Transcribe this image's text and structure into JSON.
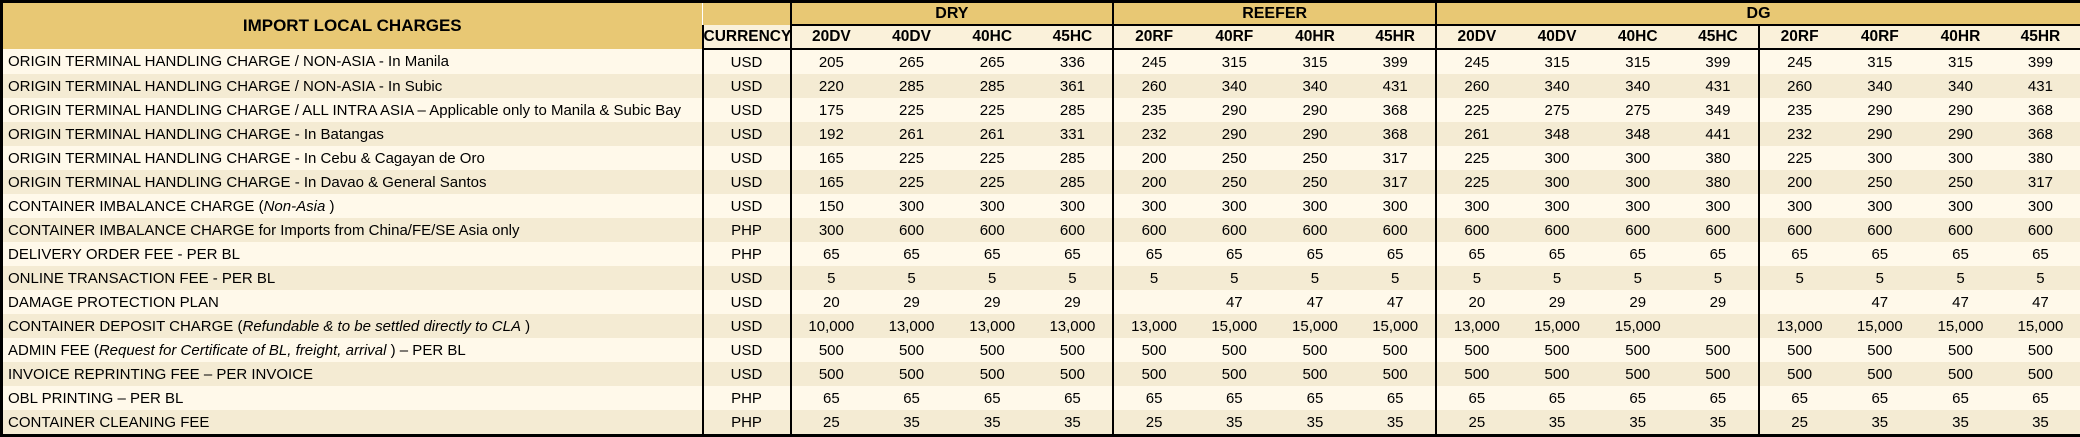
{
  "colors": {
    "gold": "#E8C874",
    "subhead": "#FAF1DA",
    "rowLight": "#FFF9EA",
    "rowDark": "#F4EBD3",
    "border": "#000000"
  },
  "table": {
    "title": "IMPORT LOCAL CHARGES",
    "currency_header": "CURRENCY",
    "groups": [
      {
        "label": "DRY",
        "cols": [
          "20DV",
          "40DV",
          "40HC",
          "45HC"
        ]
      },
      {
        "label": "REEFER",
        "cols": [
          "20RF",
          "40RF",
          "40HR",
          "45HR"
        ]
      },
      {
        "label": "DG",
        "cols": [
          "20DV",
          "40DV",
          "40HC",
          "45HC",
          "20RF",
          "40RF",
          "40HR",
          "45HR"
        ]
      }
    ],
    "rows": [
      {
        "label": {
          "pre": "ORIGIN TERMINAL HANDLING CHARGE / NON-ASIA - In Manila",
          "em": "",
          "post": ""
        },
        "currency": "USD",
        "values": [
          "205",
          "265",
          "265",
          "336",
          "245",
          "315",
          "315",
          "399",
          "245",
          "315",
          "315",
          "399",
          "245",
          "315",
          "315",
          "399"
        ]
      },
      {
        "label": {
          "pre": "ORIGIN TERMINAL HANDLING CHARGE / NON-ASIA - In Subic",
          "em": "",
          "post": ""
        },
        "currency": "USD",
        "values": [
          "220",
          "285",
          "285",
          "361",
          "260",
          "340",
          "340",
          "431",
          "260",
          "340",
          "340",
          "431",
          "260",
          "340",
          "340",
          "431"
        ]
      },
      {
        "label": {
          "pre": "ORIGIN TERMINAL HANDLING CHARGE / ALL INTRA ASIA – Applicable only to Manila & Subic Bay",
          "em": "",
          "post": ""
        },
        "currency": "USD",
        "values": [
          "175",
          "225",
          "225",
          "285",
          "235",
          "290",
          "290",
          "368",
          "225",
          "275",
          "275",
          "349",
          "235",
          "290",
          "290",
          "368"
        ]
      },
      {
        "label": {
          "pre": "ORIGIN TERMINAL HANDLING CHARGE - In Batangas",
          "em": "",
          "post": ""
        },
        "currency": "USD",
        "values": [
          "192",
          "261",
          "261",
          "331",
          "232",
          "290",
          "290",
          "368",
          "261",
          "348",
          "348",
          "441",
          "232",
          "290",
          "290",
          "368"
        ]
      },
      {
        "label": {
          "pre": "ORIGIN TERMINAL HANDLING CHARGE - In Cebu & Cagayan de Oro",
          "em": "",
          "post": ""
        },
        "currency": "USD",
        "values": [
          "165",
          "225",
          "225",
          "285",
          "200",
          "250",
          "250",
          "317",
          "225",
          "300",
          "300",
          "380",
          "225",
          "300",
          "300",
          "380"
        ]
      },
      {
        "label": {
          "pre": "ORIGIN TERMINAL HANDLING CHARGE - In Davao & General Santos",
          "em": "",
          "post": ""
        },
        "currency": "USD",
        "values": [
          "165",
          "225",
          "225",
          "285",
          "200",
          "250",
          "250",
          "317",
          "225",
          "300",
          "300",
          "380",
          "200",
          "250",
          "250",
          "317"
        ]
      },
      {
        "label": {
          "pre": "CONTAINER IMBALANCE CHARGE (",
          "em": "Non-Asia",
          "post": " )"
        },
        "currency": "USD",
        "values": [
          "150",
          "300",
          "300",
          "300",
          "300",
          "300",
          "300",
          "300",
          "300",
          "300",
          "300",
          "300",
          "300",
          "300",
          "300",
          "300"
        ]
      },
      {
        "label": {
          "pre": "CONTAINER IMBALANCE CHARGE for Imports from China/FE/SE Asia only",
          "em": "",
          "post": ""
        },
        "currency": "PHP",
        "values": [
          "300",
          "600",
          "600",
          "600",
          "600",
          "600",
          "600",
          "600",
          "600",
          "600",
          "600",
          "600",
          "600",
          "600",
          "600",
          "600"
        ]
      },
      {
        "label": {
          "pre": "DELIVERY ORDER FEE - PER BL",
          "em": "",
          "post": ""
        },
        "currency": "PHP",
        "values": [
          "65",
          "65",
          "65",
          "65",
          "65",
          "65",
          "65",
          "65",
          "65",
          "65",
          "65",
          "65",
          "65",
          "65",
          "65",
          "65"
        ]
      },
      {
        "label": {
          "pre": "ONLINE TRANSACTION FEE - PER BL",
          "em": "",
          "post": ""
        },
        "currency": "USD",
        "values": [
          "5",
          "5",
          "5",
          "5",
          "5",
          "5",
          "5",
          "5",
          "5",
          "5",
          "5",
          "5",
          "5",
          "5",
          "5",
          "5"
        ]
      },
      {
        "label": {
          "pre": "DAMAGE PROTECTION PLAN",
          "em": "",
          "post": ""
        },
        "currency": "USD",
        "values": [
          "20",
          "29",
          "29",
          "29",
          "",
          "47",
          "47",
          "47",
          "20",
          "29",
          "29",
          "29",
          "",
          "47",
          "47",
          "47"
        ]
      },
      {
        "label": {
          "pre": "CONTAINER DEPOSIT CHARGE (",
          "em": "Refundable & to be settled directly to CLA",
          "post": " )"
        },
        "currency": "USD",
        "values": [
          "10,000",
          "13,000",
          "13,000",
          "13,000",
          "13,000",
          "15,000",
          "15,000",
          "15,000",
          "13,000",
          "15,000",
          "15,000",
          "",
          "13,000",
          "15,000",
          "15,000",
          "15,000"
        ]
      },
      {
        "label": {
          "pre": "ADMIN FEE (",
          "em": "Request for Certificate of BL, freight, arrival",
          "post": " ) – PER BL"
        },
        "currency": "USD",
        "values": [
          "500",
          "500",
          "500",
          "500",
          "500",
          "500",
          "500",
          "500",
          "500",
          "500",
          "500",
          "500",
          "500",
          "500",
          "500",
          "500"
        ]
      },
      {
        "label": {
          "pre": "INVOICE REPRINTING FEE – PER INVOICE",
          "em": "",
          "post": ""
        },
        "currency": "USD",
        "values": [
          "500",
          "500",
          "500",
          "500",
          "500",
          "500",
          "500",
          "500",
          "500",
          "500",
          "500",
          "500",
          "500",
          "500",
          "500",
          "500"
        ]
      },
      {
        "label": {
          "pre": "OBL PRINTING – PER BL",
          "em": "",
          "post": ""
        },
        "currency": "PHP",
        "values": [
          "65",
          "65",
          "65",
          "65",
          "65",
          "65",
          "65",
          "65",
          "65",
          "65",
          "65",
          "65",
          "65",
          "65",
          "65",
          "65"
        ]
      },
      {
        "label": {
          "pre": "CONTAINER CLEANING FEE",
          "em": "",
          "post": ""
        },
        "currency": "PHP",
        "values": [
          "25",
          "35",
          "35",
          "35",
          "25",
          "35",
          "35",
          "35",
          "25",
          "35",
          "35",
          "35",
          "25",
          "35",
          "35",
          "35"
        ]
      }
    ]
  }
}
